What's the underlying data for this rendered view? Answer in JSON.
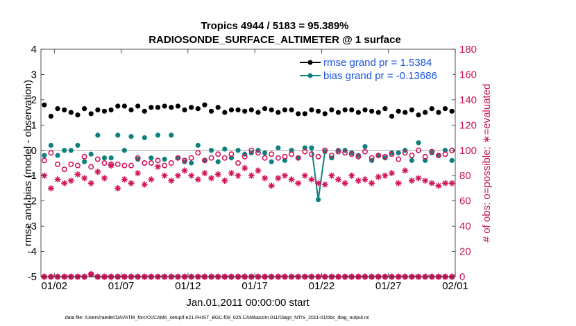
{
  "chart_data": {
    "type": "line",
    "title": "Tropics 4944 / 5183 = 95.389%",
    "subtitle": "RADIOSONDE_SURFACE_ALTIMETER @ 1 surface",
    "xlabel": "Jan.01,2011 00:00:00 start",
    "ylabel_left": "rmse and bias (model - observation)",
    "ylabel_right": "# of obs: o=possible; ∗=evaluated",
    "ylim_left": [
      -5,
      4
    ],
    "ylim_right": [
      0,
      180
    ],
    "xlim": [
      0,
      31
    ],
    "xticks": [
      1,
      6,
      11,
      16,
      21,
      26,
      31
    ],
    "xtick_labels": [
      "01/02",
      "01/07",
      "01/12",
      "01/17",
      "01/22",
      "01/27",
      "02/01"
    ],
    "yticks_left": [
      -5,
      -4,
      -3,
      -2,
      -1,
      0,
      1,
      2,
      3,
      4
    ],
    "yticks_right": [
      0,
      20,
      40,
      60,
      80,
      100,
      120,
      140,
      160,
      180
    ],
    "zero_line": 0,
    "x": [
      0.25,
      0.75,
      1.25,
      1.75,
      2.25,
      2.75,
      3.25,
      3.75,
      4.25,
      4.75,
      5.25,
      5.75,
      6.25,
      6.75,
      7.25,
      7.75,
      8.25,
      8.75,
      9.25,
      9.75,
      10.25,
      10.75,
      11.25,
      11.75,
      12.25,
      12.75,
      13.25,
      13.75,
      14.25,
      14.75,
      15.25,
      15.75,
      16.25,
      16.75,
      17.25,
      17.75,
      18.25,
      18.75,
      19.25,
      19.75,
      20.25,
      20.75,
      21.25,
      21.75,
      22.25,
      22.75,
      23.25,
      23.75,
      24.25,
      24.75,
      25.25,
      25.75,
      26.25,
      26.75,
      27.25,
      27.75,
      28.25,
      28.75,
      29.25,
      29.75,
      30.25,
      30.75
    ],
    "series": [
      {
        "name": "rmse",
        "legend": "rmse grand pr = 1.5384",
        "color": "#000000",
        "axis": "left",
        "values": [
          1.8,
          1.35,
          1.65,
          1.6,
          1.5,
          1.4,
          1.65,
          1.45,
          1.6,
          1.55,
          1.6,
          1.75,
          1.75,
          1.6,
          1.75,
          1.55,
          1.7,
          1.7,
          1.75,
          1.7,
          1.75,
          1.6,
          1.7,
          1.65,
          1.8,
          1.55,
          1.7,
          1.5,
          1.6,
          1.6,
          1.55,
          1.6,
          1.5,
          1.65,
          1.6,
          1.5,
          1.6,
          1.6,
          1.45,
          1.45,
          1.6,
          1.55,
          1.45,
          1.6,
          1.5,
          1.6,
          1.6,
          1.5,
          1.6,
          1.55,
          1.5,
          1.65,
          1.35,
          1.55,
          1.5,
          1.6,
          1.4,
          1.5,
          1.65,
          1.5,
          1.65,
          1.55
        ],
        "connect": [
          false,
          false,
          false,
          false,
          false,
          false,
          false,
          false,
          false,
          false,
          false,
          false,
          false,
          false,
          false,
          false,
          false,
          false,
          false,
          false,
          false,
          false,
          false,
          false,
          false,
          false,
          false,
          false,
          false,
          false,
          false,
          false,
          false,
          false,
          false,
          false,
          false,
          false,
          false,
          false,
          false,
          false,
          false,
          false,
          false,
          false,
          false,
          false,
          false,
          false,
          false,
          false,
          false,
          false,
          false,
          false,
          false,
          false,
          false,
          false,
          false,
          false
        ]
      },
      {
        "name": "bias",
        "legend": "bias grand pr = -0.13686",
        "color": "#0f8080",
        "axis": "left",
        "values": [
          -0.2,
          0.2,
          -0.2,
          0.0,
          0.0,
          0.2,
          -0.45,
          -0.15,
          0.6,
          -0.3,
          -0.3,
          0.6,
          0.0,
          0.55,
          -0.35,
          0.5,
          -0.3,
          0.6,
          -0.35,
          0.6,
          -0.3,
          -0.45,
          -0.5,
          0.2,
          -0.4,
          0.0,
          -0.45,
          0.05,
          -0.3,
          0.0,
          -0.15,
          -0.1,
          0.0,
          -0.1,
          -0.45,
          0.1,
          -0.4,
          0.0,
          -0.3,
          0.1,
          0.1,
          -1.95,
          -0.05,
          -0.3,
          0.0,
          0.0,
          -0.1,
          -0.2,
          0.15,
          -0.4,
          -0.2,
          -0.3,
          -0.1,
          -0.1,
          0.0,
          -0.4,
          0.3,
          -0.4,
          -0.1,
          -0.2,
          0.0,
          -0.4
        ],
        "connect": [
          false,
          false,
          false,
          false,
          false,
          false,
          false,
          false,
          false,
          false,
          false,
          false,
          false,
          false,
          false,
          false,
          false,
          false,
          false,
          false,
          false,
          false,
          false,
          false,
          false,
          false,
          false,
          false,
          false,
          false,
          false,
          false,
          false,
          false,
          false,
          false,
          false,
          false,
          false,
          false,
          true,
          true,
          true,
          false,
          false,
          false,
          false,
          false,
          false,
          false,
          false,
          false,
          false,
          false,
          false,
          false,
          false,
          false,
          false,
          false,
          false,
          false
        ]
      },
      {
        "name": "obs possible",
        "color": "#d1155b",
        "axis": "right",
        "marker": "o",
        "values": [
          92,
          98,
          89,
          85,
          89,
          88,
          95,
          87,
          93,
          90,
          89,
          89,
          88,
          88,
          94,
          90,
          90,
          92,
          88,
          90,
          94,
          92,
          94,
          98,
          92,
          94,
          97,
          94,
          97,
          90,
          95,
          100,
          98,
          94,
          97,
          94,
          95,
          97,
          94,
          99,
          97,
          95,
          100,
          96,
          99,
          98,
          97,
          95,
          99,
          94,
          96,
          95,
          97,
          93,
          98,
          96,
          100,
          95,
          99,
          96,
          97,
          100
        ]
      },
      {
        "name": "obs evaluated",
        "color": "#d1155b",
        "axis": "right",
        "marker": "*",
        "values": [
          80,
          70,
          77,
          74,
          76,
          81,
          78,
          74,
          83,
          78,
          88,
          70,
          77,
          74,
          82,
          73,
          77,
          87,
          80,
          76,
          80,
          84,
          80,
          77,
          82,
          78,
          81,
          76,
          82,
          80,
          86,
          80,
          84,
          78,
          72,
          78,
          80,
          77,
          74,
          80,
          77,
          74,
          73,
          80,
          77,
          74,
          80,
          76,
          77,
          74,
          79,
          80,
          82,
          74,
          84,
          76,
          78,
          76,
          74,
          72,
          74,
          74
        ]
      },
      {
        "name": "obs possible baseline",
        "color": "#d1155b",
        "axis": "right",
        "marker": "o",
        "values": [
          0,
          0,
          0,
          0,
          0,
          0,
          0,
          2,
          0,
          0,
          0,
          0,
          0,
          0,
          0,
          0,
          0,
          0,
          0,
          0,
          0,
          0,
          0,
          0,
          0,
          0,
          0,
          0,
          0,
          0,
          0,
          0,
          0,
          0,
          0,
          0,
          0,
          0,
          0,
          0,
          0,
          0,
          0,
          0,
          0,
          0,
          0,
          0,
          0,
          0,
          0,
          0,
          0,
          0,
          0,
          0,
          0,
          0,
          0,
          0,
          0,
          0
        ]
      },
      {
        "name": "obs evaluated baseline",
        "color": "#d1155b",
        "axis": "right",
        "marker": "*",
        "values": [
          0,
          0,
          0,
          0,
          0,
          0,
          0,
          2,
          0,
          0,
          0,
          0,
          0,
          0,
          0,
          0,
          0,
          0,
          0,
          0,
          0,
          0,
          0,
          0,
          0,
          0,
          0,
          0,
          0,
          0,
          0,
          0,
          0,
          0,
          0,
          0,
          0,
          0,
          0,
          0,
          0,
          0,
          0,
          0,
          0,
          0,
          0,
          0,
          0,
          0,
          0,
          0,
          0,
          0,
          0,
          0,
          0,
          0,
          0,
          0,
          0,
          0
        ]
      }
    ],
    "legend_position": "top-right",
    "footer": "data file: /Users/raeder/DAI/ATM_forcXX/CAM6_setup/f.e21.FHIST_BGC.f09_025.CAM6assim.011/Diags_NTrS_2011-01/obs_diag_output.nc"
  }
}
